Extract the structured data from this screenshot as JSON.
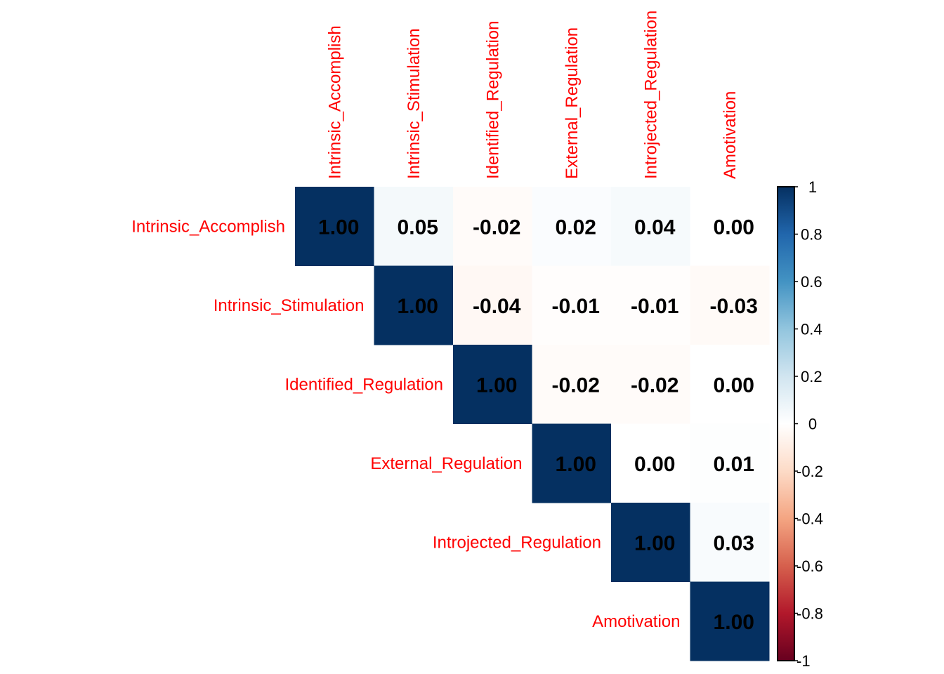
{
  "chart_data": {
    "type": "heatmap",
    "subtype": "correlation-matrix-upper",
    "variables": [
      "Intrinsic_Accomplish",
      "Intrinsic_Stimulation",
      "Identified_Regulation",
      "External_Regulation",
      "Introjected_Regulation",
      "Amotivation"
    ],
    "matrix": [
      [
        1.0,
        0.05,
        -0.02,
        0.02,
        0.04,
        0.0
      ],
      [
        null,
        1.0,
        -0.04,
        -0.01,
        -0.01,
        -0.03
      ],
      [
        null,
        null,
        1.0,
        -0.02,
        -0.02,
        0.0
      ],
      [
        null,
        null,
        null,
        1.0,
        0.0,
        0.01
      ],
      [
        null,
        null,
        null,
        null,
        1.0,
        0.03
      ],
      [
        null,
        null,
        null,
        null,
        null,
        1.0
      ]
    ],
    "value_labels": [
      [
        "1.00",
        "0.05",
        "-0.02",
        "0.02",
        "0.04",
        "0.00"
      ],
      [
        null,
        "1.00",
        "-0.04",
        "-0.01",
        "-0.01",
        "-0.03"
      ],
      [
        null,
        null,
        "1.00",
        "-0.02",
        "-0.02",
        "0.00"
      ],
      [
        null,
        null,
        null,
        "1.00",
        "0.00",
        "0.01"
      ],
      [
        null,
        null,
        null,
        null,
        "1.00",
        "0.03"
      ],
      [
        null,
        null,
        null,
        null,
        null,
        "1.00"
      ]
    ],
    "colorbar": {
      "range": [
        -1,
        1
      ],
      "ticks": [
        "1",
        "0.8",
        "0.6",
        "0.4",
        "0.2",
        "0",
        "-0.2",
        "-0.4",
        "-0.6",
        "-0.8",
        "-1"
      ],
      "palette": [
        "#67001F",
        "#B2182B",
        "#D6604D",
        "#F4A582",
        "#FDDBC7",
        "#FFFFFF",
        "#D1E5F0",
        "#92C5DE",
        "#4393C3",
        "#2166AC",
        "#053061"
      ],
      "position": "right"
    },
    "label_color": "#FF0000",
    "grid": false
  }
}
